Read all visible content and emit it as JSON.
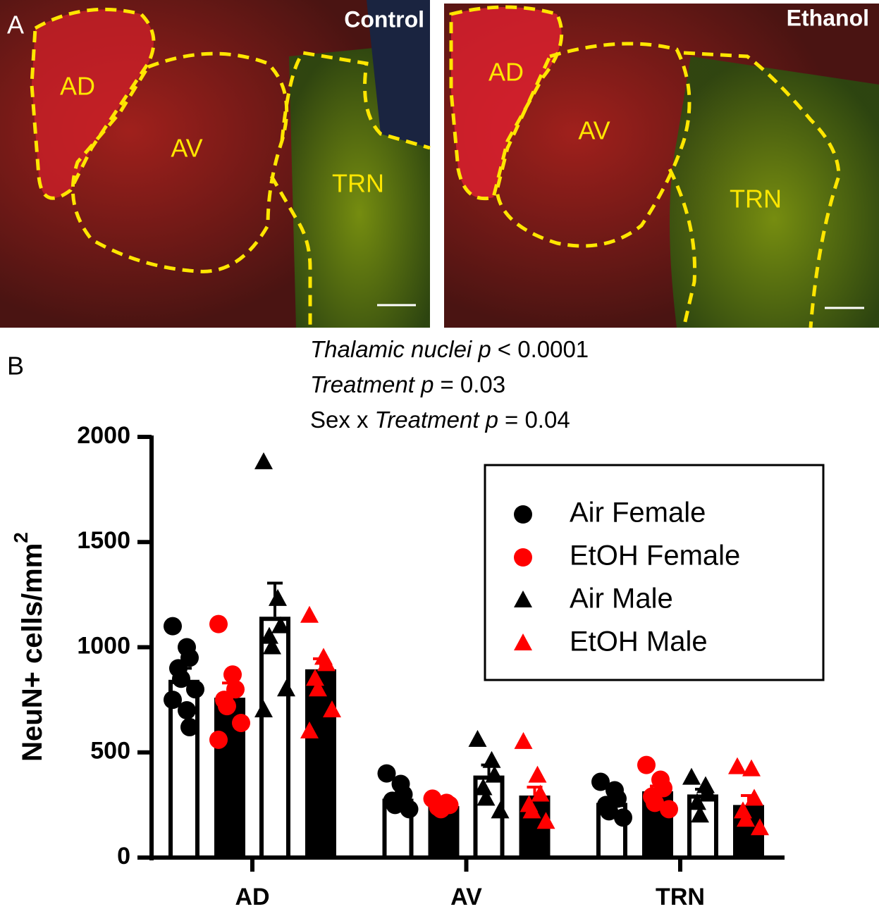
{
  "panel_labels": [
    "A",
    "B"
  ],
  "images": [
    {
      "title": "Control",
      "regions": [
        "AD",
        "AV",
        "TRN"
      ]
    },
    {
      "title": "Ethanol",
      "regions": [
        "AD",
        "AV",
        "TRN"
      ]
    }
  ],
  "stats": [
    [
      {
        "text": "Thalamic nuclei p",
        "italic": true
      },
      {
        "text": "< 0.0001",
        "italic": false
      }
    ],
    [
      {
        "text": "Treatment p",
        "italic": true
      },
      {
        "text": "= 0.03",
        "italic": false
      }
    ],
    [
      {
        "text": "Sex x",
        "italic": false
      },
      {
        "text": "Treatment p",
        "italic": true
      },
      {
        "text": "= 0.04",
        "italic": false
      }
    ]
  ],
  "chart_data": {
    "type": "bar",
    "y_label": "NeuN+ cells/mm",
    "y_label_sup": "2",
    "categories": [
      "AD",
      "AV",
      "TRN"
    ],
    "ylim": [
      0,
      2000
    ],
    "yticks": [
      0,
      500,
      1000,
      1500,
      2000
    ],
    "series": [
      {
        "name": "Air Female",
        "color": "#000000",
        "bar_fill": "#ffffff",
        "marker": "circle",
        "values": [
          845,
          280,
          260
        ],
        "errors": [
          55,
          20,
          20
        ],
        "points": [
          [
            1100,
            1000,
            950,
            900,
            850,
            800,
            750,
            700,
            620
          ],
          [
            400,
            350,
            300,
            270,
            250,
            230
          ],
          [
            360,
            320,
            280,
            250,
            220,
            190
          ]
        ]
      },
      {
        "name": "EtOH Female",
        "color": "#ff0000",
        "bar_fill": "#000000",
        "marker": "circle",
        "values": [
          760,
          245,
          315
        ],
        "errors": [
          70,
          15,
          25
        ],
        "points": [
          [
            1110,
            870,
            800,
            750,
            720,
            640,
            560
          ],
          [
            280,
            260,
            250,
            240,
            230
          ],
          [
            440,
            370,
            330,
            290,
            260,
            230
          ]
        ]
      },
      {
        "name": "Air Male",
        "color": "#000000",
        "bar_fill": "#ffffff",
        "marker": "triangle",
        "values": [
          1145,
          390,
          300
        ],
        "errors": [
          160,
          50,
          25
        ],
        "points": [
          [
            1880,
            1230,
            1100,
            1050,
            1000,
            800,
            700
          ],
          [
            560,
            460,
            390,
            330,
            280,
            220
          ],
          [
            380,
            340,
            300,
            260,
            200
          ]
        ]
      },
      {
        "name": "EtOH Male",
        "color": "#ff0000",
        "bar_fill": "#000000",
        "marker": "triangle",
        "values": [
          895,
          295,
          250
        ],
        "errors": [
          50,
          40,
          45
        ],
        "points": [
          [
            1150,
            950,
            920,
            850,
            800,
            700,
            600
          ],
          [
            550,
            390,
            300,
            250,
            220,
            170
          ],
          [
            430,
            420,
            280,
            220,
            180,
            140
          ]
        ]
      }
    ]
  }
}
